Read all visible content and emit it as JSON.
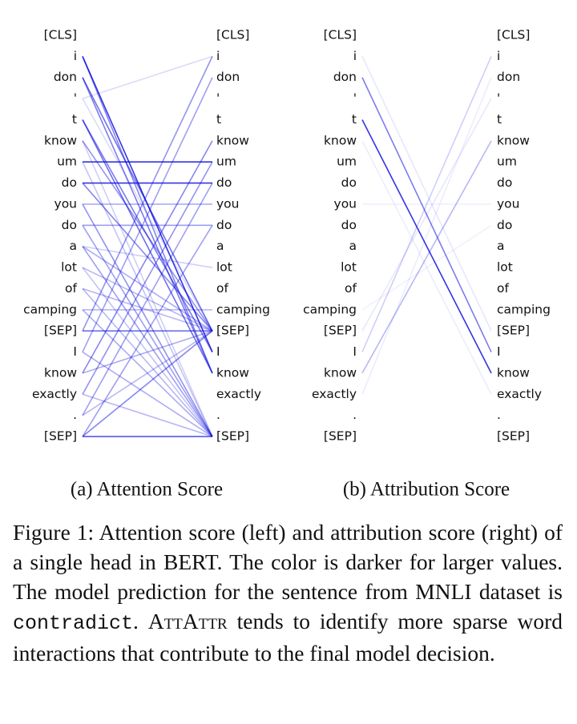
{
  "figure": {
    "tokens": [
      "[CLS]",
      "i",
      "don",
      "'",
      "t",
      "know",
      "um",
      "do",
      "you",
      "do",
      "a",
      "lot",
      "of",
      "camping",
      "[SEP]",
      "I",
      "know",
      "exactly",
      ".",
      "[SEP]"
    ],
    "color": "#1010e0",
    "panels": [
      {
        "subcaption": "(a) Attention Score",
        "links": [
          [
            1,
            15,
            0.85
          ],
          [
            1,
            16,
            0.5
          ],
          [
            2,
            14,
            0.6
          ],
          [
            2,
            16,
            0.55
          ],
          [
            4,
            15,
            0.55
          ],
          [
            4,
            16,
            0.6
          ],
          [
            5,
            14,
            0.45
          ],
          [
            6,
            6,
            0.85
          ],
          [
            7,
            7,
            0.85
          ],
          [
            7,
            14,
            0.5
          ],
          [
            8,
            8,
            0.35
          ],
          [
            8,
            19,
            0.45
          ],
          [
            9,
            9,
            0.4
          ],
          [
            9,
            19,
            0.4
          ],
          [
            10,
            14,
            0.35
          ],
          [
            10,
            19,
            0.4
          ],
          [
            11,
            14,
            0.3
          ],
          [
            12,
            14,
            0.3
          ],
          [
            12,
            19,
            0.3
          ],
          [
            13,
            13,
            0.3
          ],
          [
            13,
            19,
            0.35
          ],
          [
            14,
            14,
            0.6
          ],
          [
            14,
            1,
            0.45
          ],
          [
            15,
            2,
            0.4
          ],
          [
            16,
            5,
            0.5
          ],
          [
            16,
            14,
            0.35
          ],
          [
            17,
            6,
            0.45
          ],
          [
            17,
            19,
            0.3
          ],
          [
            18,
            7,
            0.4
          ],
          [
            18,
            14,
            0.3
          ],
          [
            19,
            19,
            0.7
          ],
          [
            19,
            14,
            0.5
          ],
          [
            19,
            9,
            0.4
          ],
          [
            15,
            19,
            0.35
          ],
          [
            3,
            14,
            0.15
          ],
          [
            3,
            1,
            0.15
          ],
          [
            11,
            19,
            0.25
          ],
          [
            10,
            11,
            0.2
          ],
          [
            5,
            19,
            0.2
          ],
          [
            6,
            19,
            0.25
          ]
        ]
      },
      {
        "subcaption": "(b) Attribution Score",
        "links": [
          [
            4,
            16,
            0.85
          ],
          [
            2,
            15,
            0.55
          ],
          [
            16,
            5,
            0.3
          ],
          [
            15,
            1,
            0.2
          ],
          [
            14,
            3,
            0.1
          ],
          [
            1,
            14,
            0.1
          ],
          [
            5,
            17,
            0.08
          ],
          [
            13,
            9,
            0.06
          ],
          [
            8,
            8,
            0.06
          ],
          [
            17,
            2,
            0.08
          ]
        ]
      }
    ],
    "caption": {
      "part1": "Figure 1:  Attention score (left) and attribution score (right) of a single head in BERT. The color is darker for larger values.  The model prediction for the sen­tence from MNLI dataset is ",
      "code": "contradict",
      "part2": ". ",
      "smallcaps": "AttAttr",
      "part3": " tends to identify more sparse word interactions that contribute to the final model decision."
    }
  }
}
